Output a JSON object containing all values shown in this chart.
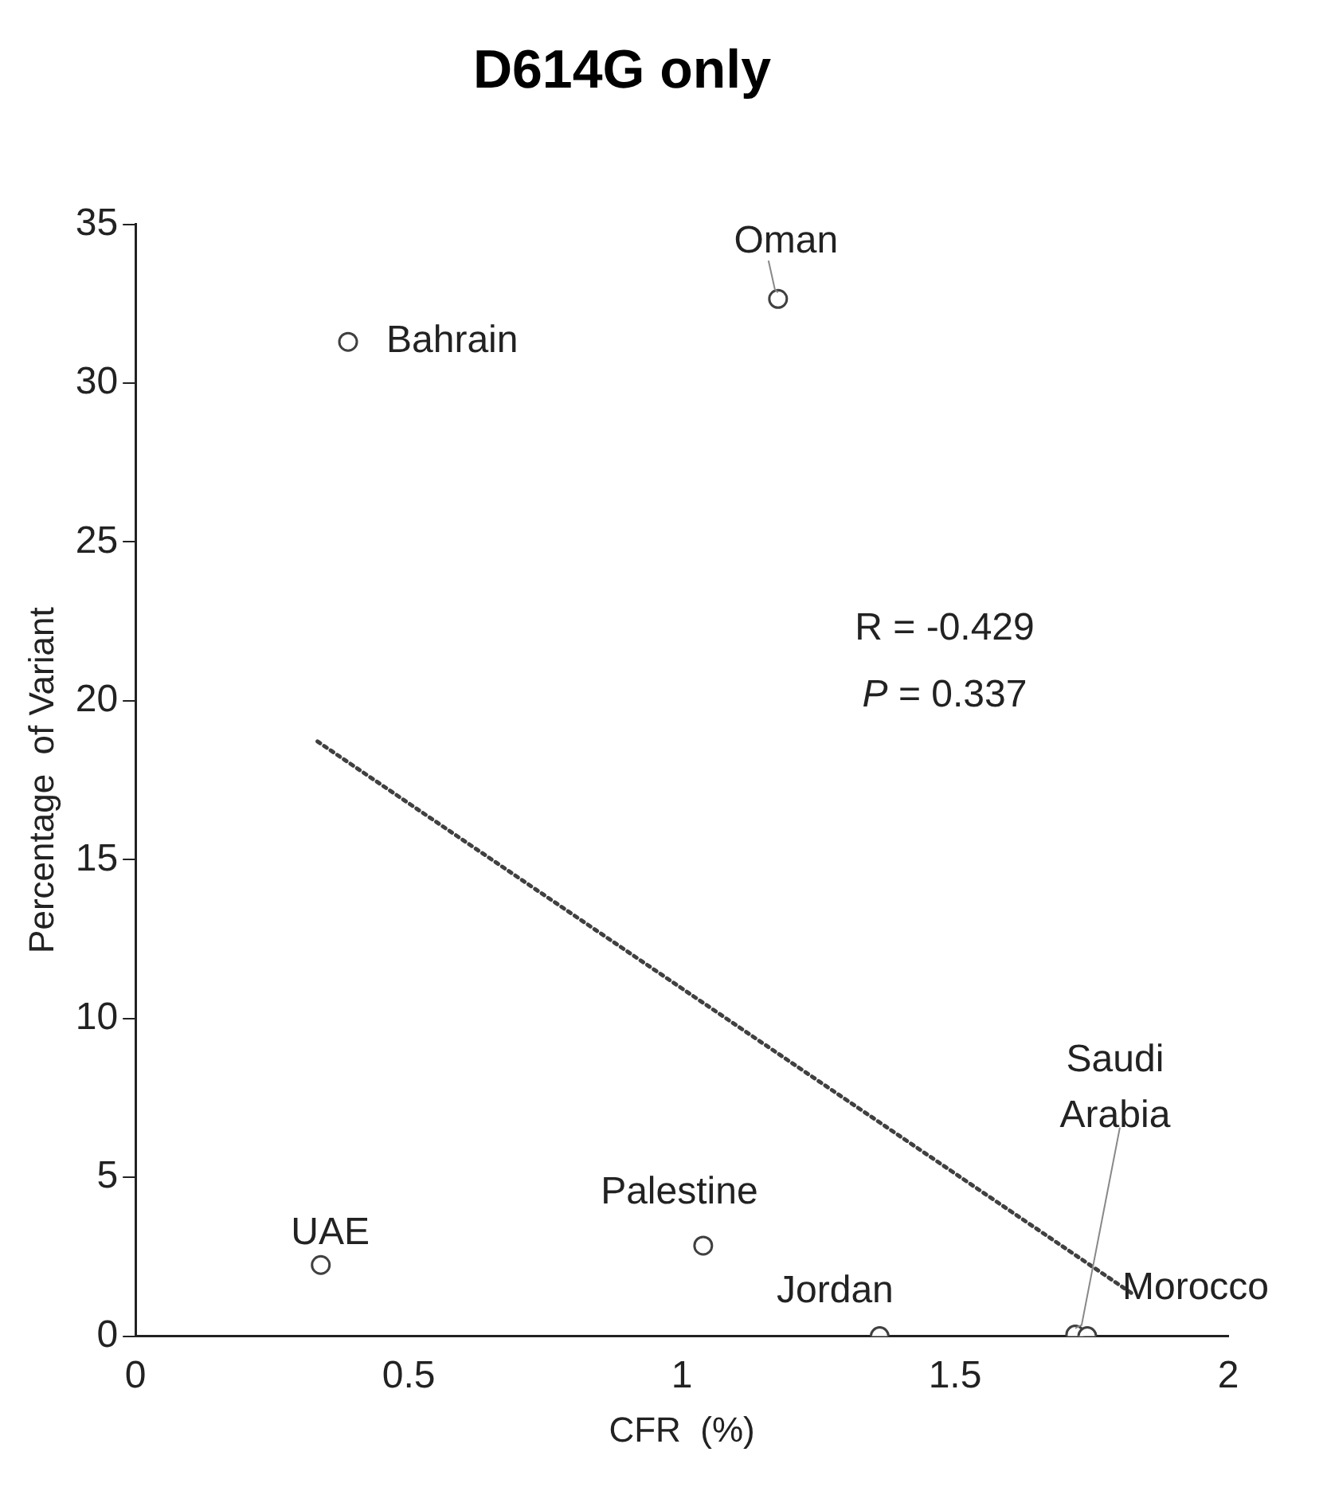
{
  "chart_data": {
    "type": "scatter",
    "title": "D614G only",
    "xlabel": "CFR  (%)",
    "ylabel": "Percentage  of Variant",
    "xlim": [
      0,
      2
    ],
    "xticks": [
      0,
      0.5,
      1,
      1.5,
      2
    ],
    "ylim": [
      0,
      35
    ],
    "yticks": [
      0,
      5,
      10,
      15,
      20,
      25,
      30,
      35
    ],
    "grid": false,
    "legend": false,
    "marker": "circle",
    "series": [
      {
        "color": "#404040",
        "x": [
          0.389,
          1.176,
          0.339,
          1.039,
          1.362,
          1.72,
          1.742
        ],
        "values": [
          31.3,
          32.65,
          2.24,
          2.85,
          0,
          0.05,
          0
        ]
      },
      {
        "type": "line",
        "color": "#404040",
        "line_style": "dotted",
        "marker": "none",
        "x": [
          0.333,
          1.826
        ],
        "values": [
          18.72,
          1.32
        ]
      }
    ],
    "annotations": [
      {
        "text": "Bahrain",
        "x": 0.389,
        "y": 31.3
      },
      {
        "text": "Oman",
        "x": 1.176,
        "y": 32.65
      },
      {
        "text": "UAE",
        "x": 0.339,
        "y": 2.24
      },
      {
        "text": "Palestine",
        "x": 1.039,
        "y": 2.85
      },
      {
        "text": "Jordan",
        "x": 1.362,
        "y": 0
      },
      {
        "text": "Saudi Arabia",
        "x": 1.72,
        "y": 0.05
      },
      {
        "text": "Morocco",
        "x": 1.742,
        "y": 0
      },
      "R = -0.429",
      "P = 0.337"
    ]
  }
}
